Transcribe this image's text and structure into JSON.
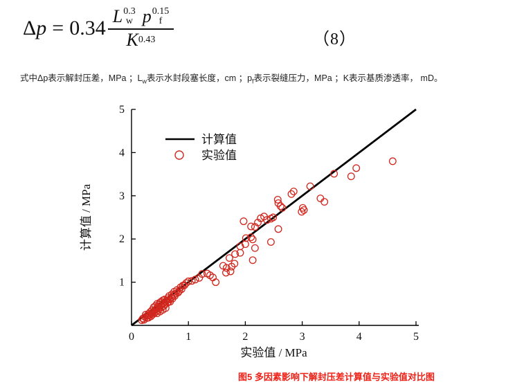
{
  "formula": {
    "lhs_delta": "Δ",
    "lhs_var": "p",
    "relation": "=",
    "coefficient": "0.34",
    "numerator": [
      {
        "base": "L",
        "sub": "w",
        "sup": "0.3"
      },
      {
        "base": "p",
        "sub": "f",
        "sup": "0.15"
      }
    ],
    "denominator": {
      "base": "K",
      "sup": "0.43"
    },
    "number": "（8）"
  },
  "description": {
    "parts": [
      "式中Δp表示解封压差，MPa ；L",
      "w",
      "表示水封段塞长度，cm ；p",
      "f",
      "表示裂缝压力，MPa ；K表示基质渗透率， mD。"
    ]
  },
  "caption": "图5 多因素影响下解封压差计算值与实验值对比图",
  "colors": {
    "scatter": "#d0281e",
    "line": "#000000",
    "axis": "#000000",
    "caption": "#ed2015"
  },
  "chart_data": {
    "type": "scatter",
    "title": "",
    "xlabel": "实验值 / MPa",
    "ylabel": "计算值 / MPa",
    "xlim": [
      0,
      5
    ],
    "ylim": [
      0,
      5
    ],
    "x_ticks": [
      0,
      1,
      2,
      3,
      4,
      5
    ],
    "y_ticks": [
      1,
      2,
      3,
      4,
      5
    ],
    "grid": false,
    "legend_position": "upper-left-inside",
    "legend": [
      {
        "label": "计算值",
        "marker": "line",
        "color": "#000000"
      },
      {
        "label": "实验值",
        "marker": "circle",
        "color": "#d0281e"
      }
    ],
    "line_series": {
      "name": "计算值",
      "points": [
        [
          0,
          0
        ],
        [
          5,
          5
        ]
      ],
      "color": "#000000"
    },
    "scatter_series": {
      "name": "实验值",
      "color": "#d0281e",
      "points": [
        [
          0.18,
          0.12
        ],
        [
          0.2,
          0.16
        ],
        [
          0.22,
          0.13
        ],
        [
          0.24,
          0.19
        ],
        [
          0.25,
          0.25
        ],
        [
          0.27,
          0.17
        ],
        [
          0.28,
          0.23
        ],
        [
          0.3,
          0.27
        ],
        [
          0.3,
          0.18
        ],
        [
          0.32,
          0.24
        ],
        [
          0.33,
          0.31
        ],
        [
          0.34,
          0.21
        ],
        [
          0.35,
          0.28
        ],
        [
          0.36,
          0.35
        ],
        [
          0.37,
          0.25
        ],
        [
          0.38,
          0.31
        ],
        [
          0.39,
          0.42
        ],
        [
          0.4,
          0.28
        ],
        [
          0.41,
          0.35
        ],
        [
          0.42,
          0.45
        ],
        [
          0.43,
          0.32
        ],
        [
          0.44,
          0.39
        ],
        [
          0.45,
          0.5
        ],
        [
          0.45,
          0.28
        ],
        [
          0.46,
          0.42
        ],
        [
          0.47,
          0.35
        ],
        [
          0.48,
          0.48
        ],
        [
          0.49,
          0.39
        ],
        [
          0.5,
          0.53
        ],
        [
          0.5,
          0.32
        ],
        [
          0.51,
          0.45
        ],
        [
          0.52,
          0.55
        ],
        [
          0.53,
          0.42
        ],
        [
          0.54,
          0.49
        ],
        [
          0.55,
          0.58
        ],
        [
          0.55,
          0.36
        ],
        [
          0.56,
          0.52
        ],
        [
          0.57,
          0.45
        ],
        [
          0.58,
          0.6
        ],
        [
          0.59,
          0.49
        ],
        [
          0.6,
          0.55
        ],
        [
          0.6,
          0.4
        ],
        [
          0.62,
          0.58
        ],
        [
          0.63,
          0.52
        ],
        [
          0.64,
          0.63
        ],
        [
          0.65,
          0.55
        ],
        [
          0.66,
          0.68
        ],
        [
          0.67,
          0.6
        ],
        [
          0.68,
          0.55
        ],
        [
          0.7,
          0.65
        ],
        [
          0.71,
          0.72
        ],
        [
          0.72,
          0.62
        ],
        [
          0.74,
          0.7
        ],
        [
          0.75,
          0.78
        ],
        [
          0.76,
          0.68
        ],
        [
          0.78,
          0.74
        ],
        [
          0.8,
          0.82
        ],
        [
          0.82,
          0.76
        ],
        [
          0.84,
          0.8
        ],
        [
          0.86,
          0.88
        ],
        [
          0.88,
          0.84
        ],
        [
          0.9,
          0.92
        ],
        [
          0.93,
          0.93
        ],
        [
          0.96,
          0.98
        ],
        [
          1.0,
          1.02
        ],
        [
          1.06,
          1.03
        ],
        [
          1.12,
          1.06
        ],
        [
          1.19,
          1.1
        ],
        [
          1.24,
          1.19
        ],
        [
          1.33,
          1.2
        ],
        [
          1.38,
          1.16
        ],
        [
          1.43,
          1.11
        ],
        [
          1.48,
          1.0
        ],
        [
          1.61,
          1.38
        ],
        [
          1.66,
          1.22
        ],
        [
          1.67,
          1.33
        ],
        [
          1.74,
          1.25
        ],
        [
          1.76,
          1.36
        ],
        [
          1.81,
          1.43
        ],
        [
          1.72,
          1.56
        ],
        [
          1.82,
          1.65
        ],
        [
          1.91,
          1.68
        ],
        [
          1.91,
          1.83
        ],
        [
          2.0,
          1.88
        ],
        [
          1.97,
          2.41
        ],
        [
          2.01,
          2.02
        ],
        [
          2.1,
          2.04
        ],
        [
          2.13,
          1.99
        ],
        [
          2.13,
          1.51
        ],
        [
          2.17,
          1.79
        ],
        [
          2.1,
          2.29
        ],
        [
          2.17,
          2.28
        ],
        [
          2.22,
          2.38
        ],
        [
          2.27,
          2.48
        ],
        [
          2.33,
          2.52
        ],
        [
          2.38,
          2.44
        ],
        [
          2.45,
          2.47
        ],
        [
          2.49,
          2.5
        ],
        [
          2.45,
          1.93
        ],
        [
          2.58,
          2.23
        ],
        [
          2.57,
          2.91
        ],
        [
          2.62,
          2.76
        ],
        [
          2.65,
          2.72
        ],
        [
          2.58,
          2.83
        ],
        [
          2.81,
          3.04
        ],
        [
          2.85,
          3.1
        ],
        [
          2.99,
          2.63
        ],
        [
          3.01,
          2.72
        ],
        [
          3.03,
          2.67
        ],
        [
          3.14,
          3.22
        ],
        [
          3.32,
          2.94
        ],
        [
          3.39,
          2.86
        ],
        [
          3.56,
          3.51
        ],
        [
          3.86,
          3.45
        ],
        [
          3.95,
          3.64
        ],
        [
          4.59,
          3.8
        ]
      ]
    }
  }
}
